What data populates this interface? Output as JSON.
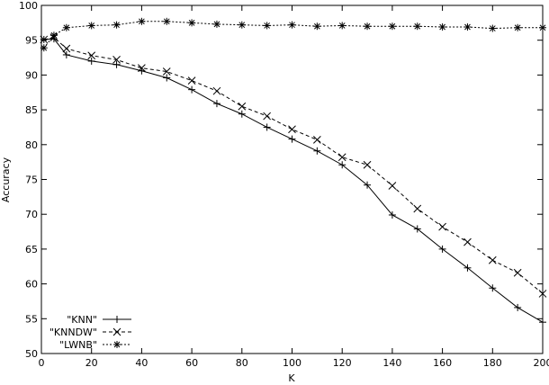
{
  "chart_data": {
    "type": "line",
    "title": "",
    "xlabel": "K",
    "ylabel": "Accuracy",
    "xlim": [
      0,
      200
    ],
    "ylim": [
      50,
      100
    ],
    "xticks": [
      0,
      20,
      40,
      60,
      80,
      100,
      120,
      140,
      160,
      180,
      200
    ],
    "yticks": [
      50,
      55,
      60,
      65,
      70,
      75,
      80,
      85,
      90,
      95,
      100
    ],
    "grid": false,
    "legend_position": "bottom-left",
    "series": [
      {
        "name": "\"KNN\"",
        "marker": "plus",
        "dash": "solid",
        "x": [
          1,
          5,
          10,
          20,
          30,
          40,
          50,
          60,
          70,
          80,
          90,
          100,
          110,
          120,
          130,
          140,
          150,
          160,
          170,
          180,
          190,
          200
        ],
        "y": [
          95.1,
          95.2,
          92.9,
          92.0,
          91.5,
          90.6,
          89.6,
          87.9,
          85.9,
          84.4,
          82.5,
          80.8,
          79.1,
          77.1,
          74.2,
          69.9,
          67.9,
          65.0,
          62.3,
          59.4,
          56.6,
          54.5
        ]
      },
      {
        "name": "\"KNNDW\"",
        "marker": "cross",
        "dash": "dashed",
        "x": [
          1,
          5,
          10,
          20,
          30,
          40,
          50,
          60,
          70,
          80,
          90,
          100,
          110,
          120,
          130,
          140,
          150,
          160,
          170,
          180,
          190,
          200
        ],
        "y": [
          95.1,
          95.4,
          93.8,
          92.8,
          92.2,
          91.0,
          90.5,
          89.2,
          87.7,
          85.5,
          84.1,
          82.2,
          80.7,
          78.2,
          77.1,
          74.1,
          70.8,
          68.2,
          66.0,
          63.4,
          61.6,
          58.6
        ]
      },
      {
        "name": "\"LWNB\"",
        "marker": "star",
        "dash": "dotted",
        "x": [
          1,
          5,
          10,
          20,
          30,
          40,
          50,
          60,
          70,
          80,
          90,
          100,
          110,
          120,
          130,
          140,
          150,
          160,
          170,
          180,
          190,
          200
        ],
        "y": [
          93.9,
          95.7,
          96.8,
          97.1,
          97.2,
          97.7,
          97.7,
          97.5,
          97.3,
          97.2,
          97.1,
          97.2,
          97.0,
          97.1,
          97.0,
          97.0,
          97.0,
          96.9,
          96.9,
          96.7,
          96.8,
          96.8
        ]
      }
    ]
  }
}
